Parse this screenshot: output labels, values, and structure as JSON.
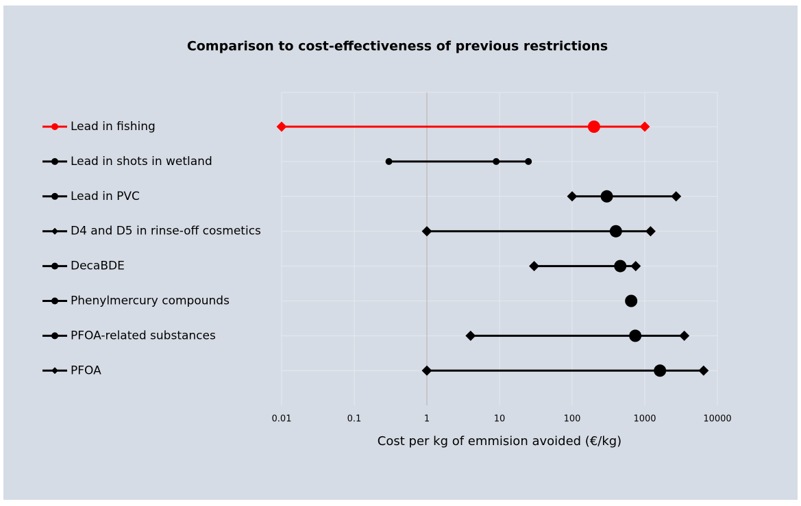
{
  "chart_data": {
    "type": "range",
    "title": "Comparison to cost-effectiveness of previous restrictions",
    "x_label": "Cost per kg of emmision avoided (€/kg)",
    "xscale": "log",
    "xlim": [
      0.01,
      10000
    ],
    "xticks": [
      0.01,
      0.1,
      1,
      10,
      100,
      1000,
      10000
    ],
    "y_axis_crosses": 1,
    "grid": true,
    "rows": [
      {
        "label": "Lead in fishing",
        "color": "#ff0000",
        "legend_marker": "circle",
        "points": [
          {
            "value": 0.01,
            "marker": "diamond"
          },
          {
            "value": 200,
            "marker": "big-circle"
          },
          {
            "value": 1000,
            "marker": "diamond"
          }
        ]
      },
      {
        "label": "Lead in shots in wetland",
        "color": "#000000",
        "legend_marker": "circle",
        "points": [
          {
            "value": 0.3,
            "marker": "circle"
          },
          {
            "value": 9,
            "marker": "circle"
          },
          {
            "value": 25,
            "marker": "circle"
          }
        ]
      },
      {
        "label": "Lead in PVC",
        "color": "#000000",
        "legend_marker": "circle",
        "points": [
          {
            "value": 100,
            "marker": "diamond"
          },
          {
            "value": 300,
            "marker": "big-circle"
          },
          {
            "value": 2700,
            "marker": "diamond"
          }
        ]
      },
      {
        "label": "D4 and D5 in rinse-off cosmetics",
        "color": "#000000",
        "legend_marker": "diamond",
        "points": [
          {
            "value": 1,
            "marker": "diamond"
          },
          {
            "value": 400,
            "marker": "big-circle"
          },
          {
            "value": 1200,
            "marker": "diamond"
          }
        ]
      },
      {
        "label": "DecaBDE",
        "color": "#000000",
        "legend_marker": "circle",
        "points": [
          {
            "value": 30,
            "marker": "diamond"
          },
          {
            "value": 460,
            "marker": "big-circle"
          },
          {
            "value": 750,
            "marker": "diamond"
          }
        ]
      },
      {
        "label": "Phenylmercury compounds",
        "color": "#000000",
        "legend_marker": "circle",
        "points": [
          {
            "value": 650,
            "marker": "big-circle"
          }
        ]
      },
      {
        "label": "PFOA-related substances",
        "color": "#000000",
        "legend_marker": "circle",
        "points": [
          {
            "value": 4,
            "marker": "diamond"
          },
          {
            "value": 740,
            "marker": "big-circle"
          },
          {
            "value": 3500,
            "marker": "diamond"
          }
        ]
      },
      {
        "label": "PFOA",
        "color": "#000000",
        "legend_marker": "diamond",
        "points": [
          {
            "value": 1,
            "marker": "diamond"
          },
          {
            "value": 1620,
            "marker": "big-circle"
          },
          {
            "value": 6450,
            "marker": "diamond"
          }
        ]
      }
    ]
  }
}
